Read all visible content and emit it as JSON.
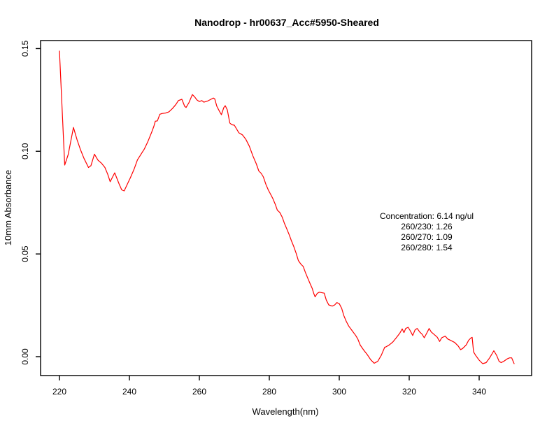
{
  "window": {
    "background": "#ffffff",
    "foreground": "#000000"
  },
  "chart_data": {
    "type": "line",
    "title": "Nanodrop - hr00637_Acc#5950-Sheared",
    "xlabel": "Wavelength(nm)",
    "ylabel": "10mm Absorbance",
    "grid": false,
    "legend": "none",
    "line_color": "#ff0000",
    "box_color": "#000000",
    "xlim": [
      214.6,
      355.0
    ],
    "ylim": [
      -0.0092,
      0.1539
    ],
    "x_ticks": [
      220,
      240,
      260,
      280,
      300,
      320,
      340
    ],
    "y_ticks": [
      {
        "value": 0.0,
        "label": "0.00"
      },
      {
        "value": 0.05,
        "label": "0.05"
      },
      {
        "value": 0.1,
        "label": "0.10"
      },
      {
        "value": 0.15,
        "label": "0.15"
      }
    ],
    "annotation": {
      "x_nm": 325,
      "y_abs": 0.0671,
      "lines": [
        "Concentration: 6.14 ng/ul",
        "260/230: 1.26",
        "260/270: 1.09",
        "260/280: 1.54"
      ]
    },
    "points": [
      [
        220,
        0.1488
      ],
      [
        221.5,
        0.0933
      ],
      [
        222.5,
        0.0984
      ],
      [
        224,
        0.1116
      ],
      [
        225,
        0.1058
      ],
      [
        226,
        0.1008
      ],
      [
        227,
        0.0966
      ],
      [
        228.3,
        0.0921
      ],
      [
        229,
        0.093
      ],
      [
        230,
        0.0986
      ],
      [
        231,
        0.0957
      ],
      [
        232,
        0.0942
      ],
      [
        233,
        0.0921
      ],
      [
        233.8,
        0.0888
      ],
      [
        234.5,
        0.0852
      ],
      [
        235.8,
        0.0895
      ],
      [
        237,
        0.0843
      ],
      [
        237.8,
        0.0812
      ],
      [
        238.5,
        0.0807
      ],
      [
        239.3,
        0.0836
      ],
      [
        240.3,
        0.0872
      ],
      [
        241.3,
        0.0911
      ],
      [
        242.3,
        0.0958
      ],
      [
        243.3,
        0.0985
      ],
      [
        244.3,
        0.1012
      ],
      [
        245.3,
        0.1048
      ],
      [
        246.3,
        0.109
      ],
      [
        247,
        0.1122
      ],
      [
        247.4,
        0.1146
      ],
      [
        248,
        0.1148
      ],
      [
        248.7,
        0.118
      ],
      [
        249.3,
        0.1184
      ],
      [
        250.3,
        0.1186
      ],
      [
        251.3,
        0.1192
      ],
      [
        252.3,
        0.1208
      ],
      [
        253.3,
        0.1228
      ],
      [
        254,
        0.1247
      ],
      [
        255,
        0.1253
      ],
      [
        255.8,
        0.1219
      ],
      [
        256.2,
        0.1213
      ],
      [
        257,
        0.1236
      ],
      [
        258,
        0.1276
      ],
      [
        258.7,
        0.1264
      ],
      [
        259.3,
        0.125
      ],
      [
        260,
        0.1242
      ],
      [
        260.7,
        0.1247
      ],
      [
        261.3,
        0.1239
      ],
      [
        262.3,
        0.1244
      ],
      [
        263.3,
        0.1253
      ],
      [
        264,
        0.1259
      ],
      [
        264.4,
        0.1255
      ],
      [
        265,
        0.1219
      ],
      [
        265.7,
        0.1196
      ],
      [
        266.3,
        0.1178
      ],
      [
        267,
        0.1213
      ],
      [
        267.4,
        0.1222
      ],
      [
        268,
        0.1201
      ],
      [
        268.7,
        0.1138
      ],
      [
        269.3,
        0.1129
      ],
      [
        270,
        0.1127
      ],
      [
        271.3,
        0.109
      ],
      [
        272.3,
        0.108
      ],
      [
        273.3,
        0.1058
      ],
      [
        274.3,
        0.1024
      ],
      [
        275.3,
        0.0978
      ],
      [
        276.3,
        0.0938
      ],
      [
        277,
        0.0904
      ],
      [
        277.7,
        0.0892
      ],
      [
        278.3,
        0.0875
      ],
      [
        279,
        0.084
      ],
      [
        279.7,
        0.0812
      ],
      [
        280.3,
        0.0793
      ],
      [
        281,
        0.077
      ],
      [
        281.7,
        0.0742
      ],
      [
        282.3,
        0.0713
      ],
      [
        283,
        0.0702
      ],
      [
        283.7,
        0.0679
      ],
      [
        284.3,
        0.065
      ],
      [
        285,
        0.0622
      ],
      [
        285.7,
        0.0593
      ],
      [
        286.3,
        0.0565
      ],
      [
        287,
        0.0536
      ],
      [
        287.7,
        0.0502
      ],
      [
        288.3,
        0.0468
      ],
      [
        289,
        0.0451
      ],
      [
        289.7,
        0.0439
      ],
      [
        290.3,
        0.0411
      ],
      [
        291,
        0.0382
      ],
      [
        291.7,
        0.0354
      ],
      [
        292.3,
        0.0331
      ],
      [
        292.7,
        0.0308
      ],
      [
        293.1,
        0.0291
      ],
      [
        293.7,
        0.0308
      ],
      [
        294.3,
        0.0314
      ],
      [
        295.7,
        0.0309
      ],
      [
        296.3,
        0.0275
      ],
      [
        297,
        0.0252
      ],
      [
        298,
        0.0246
      ],
      [
        298.7,
        0.0252
      ],
      [
        299.3,
        0.0263
      ],
      [
        300,
        0.0258
      ],
      [
        300.7,
        0.0235
      ],
      [
        301.3,
        0.02
      ],
      [
        302,
        0.0172
      ],
      [
        302.7,
        0.0149
      ],
      [
        303.7,
        0.0126
      ],
      [
        304.7,
        0.0103
      ],
      [
        305.3,
        0.0086
      ],
      [
        306,
        0.0056
      ],
      [
        307,
        0.0032
      ],
      [
        308,
        0.001
      ],
      [
        309,
        -0.0015
      ],
      [
        310,
        -0.0032
      ],
      [
        311,
        -0.0023
      ],
      [
        312,
        0.0006
      ],
      [
        313,
        0.0046
      ],
      [
        313.4,
        0.0048
      ],
      [
        314.3,
        0.0057
      ],
      [
        315.3,
        0.0071
      ],
      [
        316.3,
        0.0092
      ],
      [
        317.3,
        0.0114
      ],
      [
        318,
        0.0135
      ],
      [
        318.5,
        0.0117
      ],
      [
        319,
        0.0137
      ],
      [
        319.7,
        0.0143
      ],
      [
        320.3,
        0.0126
      ],
      [
        321,
        0.0103
      ],
      [
        321.7,
        0.0131
      ],
      [
        322.3,
        0.0137
      ],
      [
        323,
        0.012
      ],
      [
        323.7,
        0.0109
      ],
      [
        324.3,
        0.0092
      ],
      [
        325,
        0.0114
      ],
      [
        325.7,
        0.0137
      ],
      [
        326.3,
        0.012
      ],
      [
        327,
        0.011
      ],
      [
        328,
        0.0095
      ],
      [
        328.7,
        0.0074
      ],
      [
        329.3,
        0.0092
      ],
      [
        330.3,
        0.01
      ],
      [
        331,
        0.0086
      ],
      [
        332,
        0.0078
      ],
      [
        333,
        0.0069
      ],
      [
        334,
        0.0052
      ],
      [
        334.7,
        0.0034
      ],
      [
        335.3,
        0.004
      ],
      [
        336.3,
        0.0057
      ],
      [
        337,
        0.008
      ],
      [
        337.7,
        0.0092
      ],
      [
        338,
        0.0094
      ],
      [
        338.4,
        0.0023
      ],
      [
        339,
        0.0006
      ],
      [
        340,
        -0.0017
      ],
      [
        341,
        -0.0034
      ],
      [
        342,
        -0.0029
      ],
      [
        343,
        -0.0006
      ],
      [
        344.2,
        0.0029
      ],
      [
        345,
        0.0006
      ],
      [
        345.7,
        -0.0023
      ],
      [
        346.3,
        -0.0029
      ],
      [
        347,
        -0.0023
      ],
      [
        348,
        -0.0011
      ],
      [
        348.7,
        -0.0006
      ],
      [
        349.3,
        -0.0006
      ],
      [
        350,
        -0.0034
      ]
    ]
  }
}
